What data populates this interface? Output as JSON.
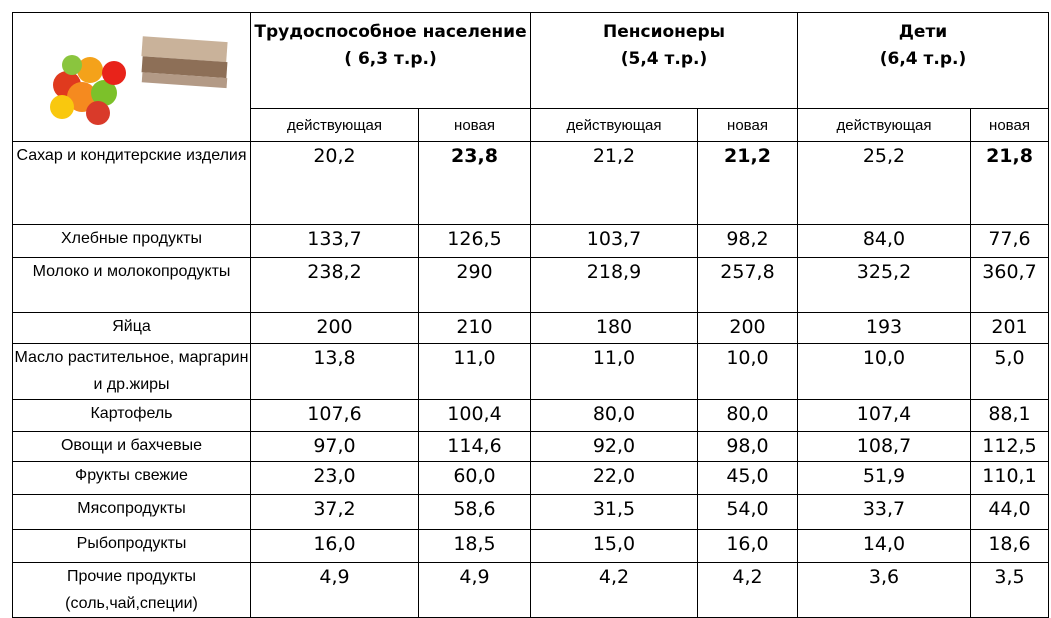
{
  "table": {
    "groups": [
      {
        "name": "Трудоспособное население",
        "norm": "( 6,3 т.р.)"
      },
      {
        "name": "Пенсионеры",
        "norm": "(5,4 т.р.)"
      },
      {
        "name": "Дети",
        "norm": "(6,4 т.р.)"
      }
    ],
    "subheaders": [
      "действующая",
      "новая",
      "действующая",
      "новая",
      "действующая",
      "новая"
    ],
    "highlight_row": 0,
    "highlight_columns": [
      1,
      3,
      5
    ],
    "rows": [
      {
        "label": "Сахар и кондитерские изделия",
        "values": [
          "20,2",
          "23,8",
          "21,2",
          "21,2",
          "25,2",
          "21,8"
        ]
      },
      {
        "label": "Хлебные продукты",
        "values": [
          "133,7",
          "126,5",
          "103,7",
          "98,2",
          "84,0",
          "77,6"
        ]
      },
      {
        "label": "Молоко и молокопродукты",
        "values": [
          "238,2",
          "290",
          "218,9",
          "257,8",
          "325,2",
          "360,7"
        ]
      },
      {
        "label": "Яйца",
        "values": [
          "200",
          "210",
          "180",
          "200",
          "193",
          "201"
        ]
      },
      {
        "label": "Масло растительное, маргарин и др.жиры",
        "values": [
          "13,8",
          "11,0",
          "11,0",
          "10,0",
          "10,0",
          "5,0"
        ]
      },
      {
        "label": "Картофель",
        "values": [
          "107,6",
          "100,4",
          "80,0",
          "80,0",
          "107,4",
          "88,1"
        ]
      },
      {
        "label": "Овощи и бахчевые",
        "values": [
          "97,0",
          "114,6",
          "92,0",
          "98,0",
          "108,7",
          "112,5"
        ]
      },
      {
        "label": "Фрукты свежие",
        "values": [
          "23,0",
          "60,0",
          "22,0",
          "45,0",
          "51,9",
          "110,1"
        ]
      },
      {
        "label": "Мясопродукты",
        "values": [
          "37,2",
          "58,6",
          "31,5",
          "54,0",
          "33,7",
          "44,0"
        ]
      },
      {
        "label": "Рыбопродукты",
        "values": [
          "16,0",
          "18,5",
          "15,0",
          "16,0",
          "14,0",
          "18,6"
        ]
      },
      {
        "label": "Прочие продукты (соль,чай,специи)",
        "values": [
          "4,9",
          "4,9",
          "4,2",
          "4,2",
          "3,6",
          "3,5"
        ]
      }
    ]
  }
}
